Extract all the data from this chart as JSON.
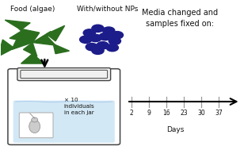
{
  "title_food": "Food (algae)",
  "title_nps": "With/without NPs",
  "timeline_label": "Media changed and\nsamples fixed on:",
  "days_label": "Days",
  "day_ticks": [
    2,
    9,
    16,
    23,
    30,
    37
  ],
  "jar_label": "× 10\nindividuals\nin each jar",
  "bg_color": "#ffffff",
  "algae_color": "#2a6e1e",
  "nps_color": "#1c1c8a",
  "jar_outline_color": "#444444",
  "water_color": "#cce4f4",
  "text_color": "#111111",
  "tick_color": "#888888",
  "font_size": 6.5,
  "figw": 3.08,
  "figh": 1.89,
  "dpi": 100
}
